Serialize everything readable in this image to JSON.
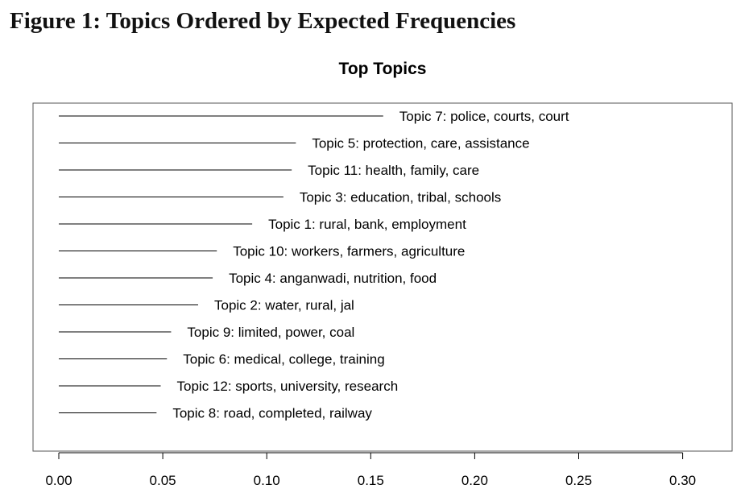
{
  "figure_title": "Figure 1: Topics Ordered by Expected Frequencies",
  "chart_data": {
    "type": "bar",
    "orientation": "horizontal",
    "title": "Top Topics",
    "xlabel": "",
    "ylabel": "",
    "xlim": [
      0.0,
      0.32
    ],
    "x_ticks": [
      "0.00",
      "0.05",
      "0.10",
      "0.15",
      "0.20",
      "0.25",
      "0.30"
    ],
    "grid": false,
    "categories": [
      "Topic 7: police, courts, court",
      "Topic 5: protection, care, assistance",
      "Topic 11: health, family, care",
      "Topic 3: education, tribal, schools",
      "Topic 1: rural, bank, employment",
      "Topic 10: workers, farmers, agriculture",
      "Topic 4: anganwadi, nutrition, food",
      "Topic 2: water, rural, jal",
      "Topic 9: limited, power, coal",
      "Topic 6: medical, college, training",
      "Topic 12: sports, university, research",
      "Topic 8: road, completed, railway"
    ],
    "values": [
      0.156,
      0.114,
      0.112,
      0.108,
      0.093,
      0.076,
      0.074,
      0.067,
      0.054,
      0.052,
      0.049,
      0.047
    ]
  }
}
